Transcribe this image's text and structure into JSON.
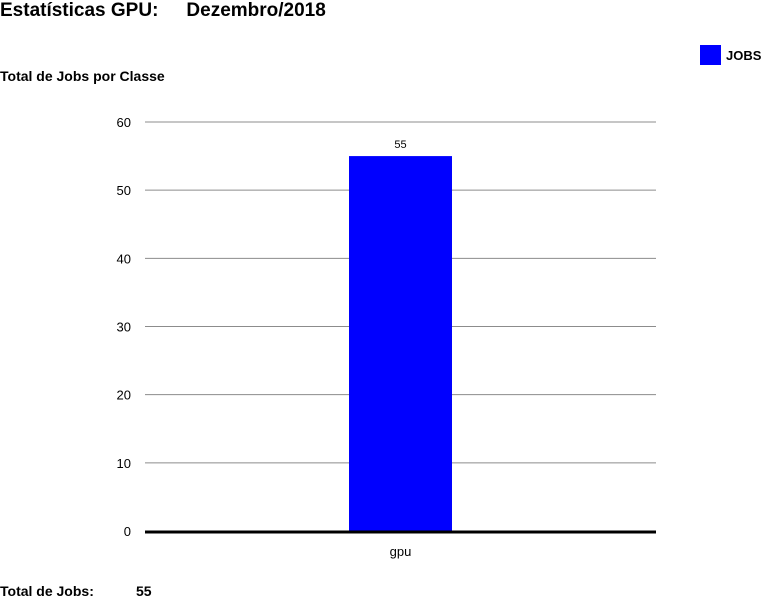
{
  "header": {
    "title": "Estatísticas GPU:",
    "period": "Dezembro/2018"
  },
  "subtitle": "Total de Jobs por Classe",
  "legend": {
    "label": "JOBS",
    "color": "#0000ff"
  },
  "footer": {
    "total_label": "Total de Jobs:",
    "total_value": "55"
  },
  "chart_data": {
    "type": "bar",
    "title": "Total de Jobs por Classe",
    "categories": [
      "gpu"
    ],
    "series": [
      {
        "name": "JOBS",
        "values": [
          55
        ],
        "color": "#0000ff"
      }
    ],
    "ylim": [
      0,
      60
    ],
    "yticks": [
      0,
      10,
      20,
      30,
      40,
      50,
      60
    ],
    "grid": true,
    "legend_position": "top-right",
    "data_labels": true
  }
}
